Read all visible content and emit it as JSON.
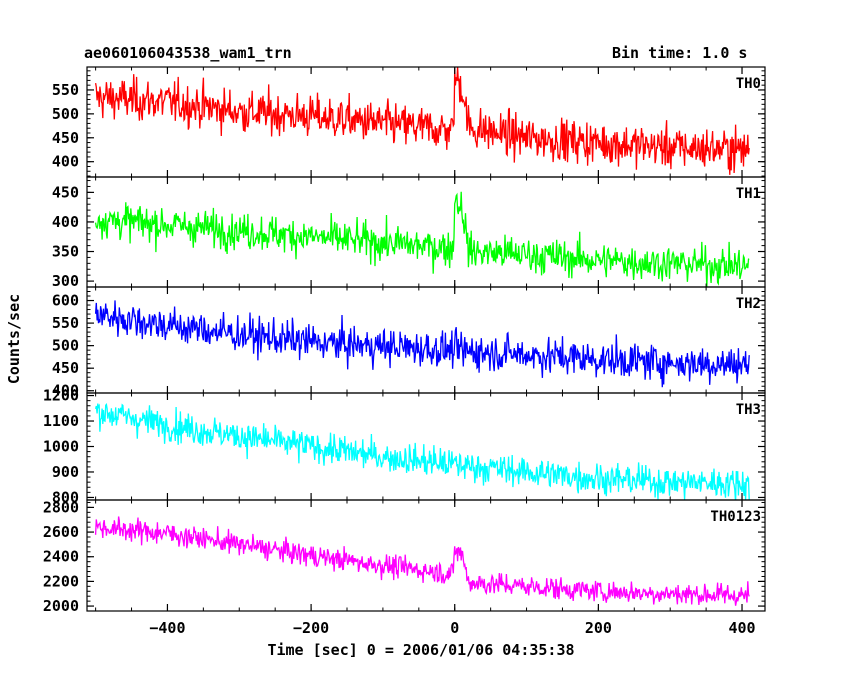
{
  "header": {
    "title": "ae060106043538_wam1_trn",
    "bin_time": "Bin time: 1.0 s"
  },
  "chart_data": {
    "type": "line",
    "xlabel": "Time [sec] 0 = 2006/01/06 04:35:38",
    "ylabel": "Counts/sec",
    "xlim": [
      -512,
      432
    ],
    "x_ticks": [
      -400,
      -200,
      0,
      200,
      400
    ],
    "x_tick_labels": [
      "−400",
      "−200",
      "0",
      "200",
      "400"
    ],
    "grid": false,
    "panels": [
      {
        "name": "TH0",
        "color": "#ff0000",
        "ylim": [
          368,
          598
        ],
        "y_ticks": [
          400,
          450,
          500,
          550
        ],
        "trend": [
          [
            -500,
            535
          ],
          [
            -400,
            525
          ],
          [
            -300,
            505
          ],
          [
            -200,
            495
          ],
          [
            -100,
            480
          ],
          [
            -2,
            465
          ],
          [
            0,
            575
          ],
          [
            10,
            560
          ],
          [
            20,
            470
          ],
          [
            100,
            450
          ],
          [
            200,
            440
          ],
          [
            300,
            430
          ],
          [
            410,
            425
          ]
        ],
        "noise_sd": 22
      },
      {
        "name": "TH1",
        "color": "#00ff00",
        "ylim": [
          290,
          476
        ],
        "y_ticks": [
          300,
          350,
          400,
          450
        ],
        "trend": [
          [
            -500,
            405
          ],
          [
            -400,
            395
          ],
          [
            -300,
            385
          ],
          [
            -200,
            375
          ],
          [
            -100,
            365
          ],
          [
            -2,
            355
          ],
          [
            0,
            440
          ],
          [
            10,
            425
          ],
          [
            20,
            350
          ],
          [
            100,
            345
          ],
          [
            200,
            335
          ],
          [
            300,
            330
          ],
          [
            410,
            325
          ]
        ],
        "noise_sd": 15
      },
      {
        "name": "TH2",
        "color": "#0000ff",
        "ylim": [
          395,
          630
        ],
        "y_ticks": [
          400,
          450,
          500,
          550,
          600
        ],
        "trend": [
          [
            -500,
            570
          ],
          [
            -400,
            545
          ],
          [
            -300,
            525
          ],
          [
            -200,
            508
          ],
          [
            -100,
            498
          ],
          [
            0,
            490
          ],
          [
            100,
            480
          ],
          [
            200,
            470
          ],
          [
            300,
            462
          ],
          [
            410,
            458
          ]
        ],
        "noise_sd": 20
      },
      {
        "name": "TH3",
        "color": "#00ffff",
        "ylim": [
          790,
          1210
        ],
        "y_ticks": [
          800,
          900,
          1000,
          1100,
          1200
        ],
        "trend": [
          [
            -500,
            1140
          ],
          [
            -400,
            1085
          ],
          [
            -300,
            1040
          ],
          [
            -200,
            1000
          ],
          [
            -100,
            960
          ],
          [
            0,
            930
          ],
          [
            100,
            900
          ],
          [
            200,
            875
          ],
          [
            300,
            860
          ],
          [
            410,
            855
          ]
        ],
        "noise_sd": 30
      },
      {
        "name": "TH0123",
        "color": "#ff00ff",
        "ylim": [
          1960,
          2860
        ],
        "y_ticks": [
          2000,
          2200,
          2400,
          2600,
          2800
        ],
        "trend": [
          [
            -500,
            2640
          ],
          [
            -400,
            2590
          ],
          [
            -300,
            2500
          ],
          [
            -200,
            2410
          ],
          [
            -100,
            2330
          ],
          [
            -2,
            2260
          ],
          [
            0,
            2460
          ],
          [
            10,
            2420
          ],
          [
            20,
            2190
          ],
          [
            100,
            2160
          ],
          [
            200,
            2120
          ],
          [
            300,
            2100
          ],
          [
            410,
            2085
          ]
        ],
        "noise_sd": 45
      }
    ]
  }
}
